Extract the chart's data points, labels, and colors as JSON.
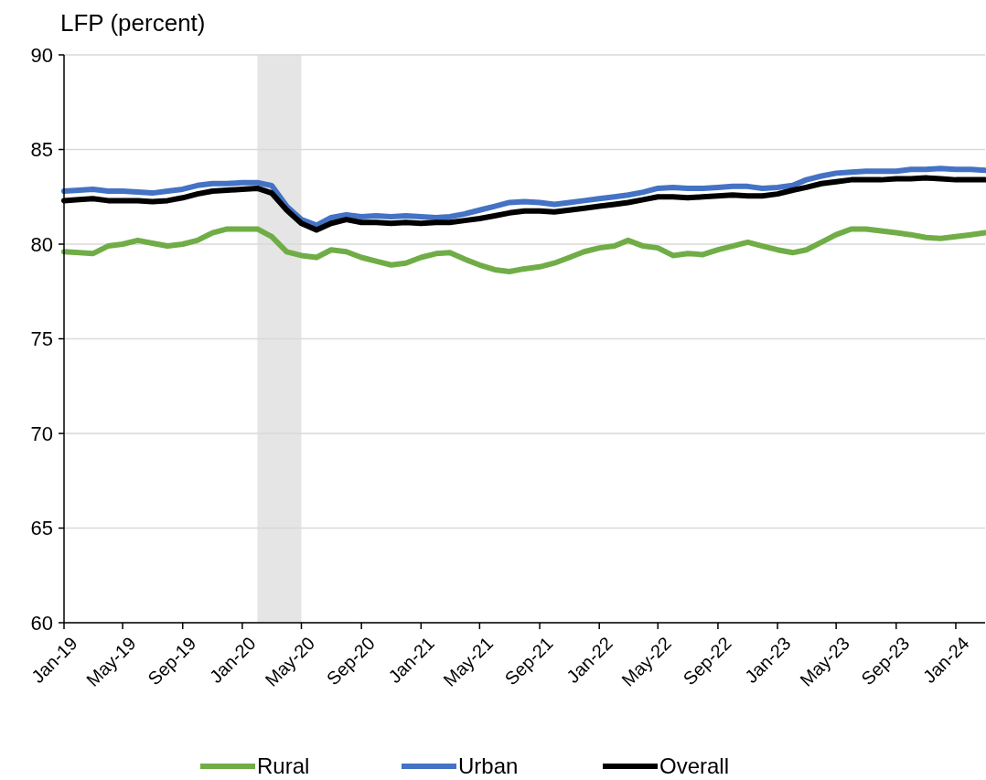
{
  "chart_data": {
    "type": "line",
    "ylabel": "LFP (percent)",
    "x": [
      "2019-01",
      "2019-02",
      "2019-03",
      "2019-04",
      "2019-05",
      "2019-06",
      "2019-07",
      "2019-08",
      "2019-09",
      "2019-10",
      "2019-11",
      "2019-12",
      "2020-01",
      "2020-02",
      "2020-03",
      "2020-04",
      "2020-05",
      "2020-06",
      "2020-07",
      "2020-08",
      "2020-09",
      "2020-10",
      "2020-11",
      "2020-12",
      "2021-01",
      "2021-02",
      "2021-03",
      "2021-04",
      "2021-05",
      "2021-06",
      "2021-07",
      "2021-08",
      "2021-09",
      "2021-10",
      "2021-11",
      "2021-12",
      "2022-01",
      "2022-02",
      "2022-03",
      "2022-04",
      "2022-05",
      "2022-06",
      "2022-07",
      "2022-08",
      "2022-09",
      "2022-10",
      "2022-11",
      "2022-12",
      "2023-01",
      "2023-02",
      "2023-03",
      "2023-04",
      "2023-05",
      "2023-06",
      "2023-07",
      "2023-08",
      "2023-09",
      "2023-10",
      "2023-11",
      "2023-12",
      "2024-01",
      "2024-02",
      "2024-03"
    ],
    "series": [
      {
        "name": "Rural",
        "color": "#70ad47",
        "values": [
          79.6,
          79.55,
          79.5,
          79.9,
          80.0,
          80.2,
          80.05,
          79.9,
          80.0,
          80.2,
          80.6,
          80.8,
          80.8,
          80.8,
          80.4,
          79.6,
          79.4,
          79.3,
          79.7,
          79.6,
          79.3,
          79.1,
          78.9,
          79.0,
          79.3,
          79.5,
          79.55,
          79.2,
          78.9,
          78.65,
          78.55,
          78.7,
          78.8,
          79.0,
          79.3,
          79.6,
          79.8,
          79.9,
          80.2,
          79.9,
          79.8,
          79.4,
          79.5,
          79.45,
          79.7,
          79.9,
          80.1,
          79.9,
          79.7,
          79.55,
          79.7,
          80.1,
          80.5,
          80.8,
          80.8,
          80.7,
          80.6,
          80.5,
          80.35,
          80.3,
          80.4,
          80.5,
          80.6
        ]
      },
      {
        "name": "Urban",
        "color": "#4472c4",
        "values": [
          82.8,
          82.85,
          82.9,
          82.8,
          82.8,
          82.75,
          82.7,
          82.8,
          82.9,
          83.1,
          83.2,
          83.2,
          83.25,
          83.25,
          83.1,
          82.0,
          81.3,
          81.0,
          81.4,
          81.55,
          81.45,
          81.5,
          81.45,
          81.5,
          81.45,
          81.4,
          81.45,
          81.6,
          81.8,
          82.0,
          82.2,
          82.25,
          82.2,
          82.1,
          82.2,
          82.3,
          82.4,
          82.5,
          82.6,
          82.75,
          82.95,
          83.0,
          82.95,
          82.95,
          83.0,
          83.05,
          83.05,
          82.95,
          83.0,
          83.1,
          83.4,
          83.6,
          83.75,
          83.8,
          83.85,
          83.85,
          83.85,
          83.95,
          83.95,
          84.0,
          83.95,
          83.95,
          83.9
        ]
      },
      {
        "name": "Overall",
        "color": "#000000",
        "values": [
          82.3,
          82.35,
          82.4,
          82.3,
          82.3,
          82.3,
          82.25,
          82.3,
          82.45,
          82.65,
          82.8,
          82.85,
          82.9,
          82.95,
          82.7,
          81.8,
          81.1,
          80.75,
          81.1,
          81.3,
          81.15,
          81.15,
          81.1,
          81.15,
          81.1,
          81.15,
          81.15,
          81.25,
          81.35,
          81.5,
          81.65,
          81.75,
          81.75,
          81.7,
          81.8,
          81.9,
          82.0,
          82.1,
          82.2,
          82.35,
          82.5,
          82.5,
          82.45,
          82.5,
          82.55,
          82.6,
          82.55,
          82.55,
          82.65,
          82.85,
          83.0,
          83.2,
          83.3,
          83.4,
          83.4,
          83.4,
          83.45,
          83.45,
          83.5,
          83.45,
          83.4,
          83.4,
          83.4
        ]
      }
    ],
    "xlim": [
      "2019-01",
      "2024-03"
    ],
    "xticks": [
      {
        "value": "2019-01",
        "label": "Jan-19"
      },
      {
        "value": "2019-05",
        "label": "May-19"
      },
      {
        "value": "2019-09",
        "label": "Sep-19"
      },
      {
        "value": "2020-01",
        "label": "Jan-20"
      },
      {
        "value": "2020-05",
        "label": "May-20"
      },
      {
        "value": "2020-09",
        "label": "Sep-20"
      },
      {
        "value": "2021-01",
        "label": "Jan-21"
      },
      {
        "value": "2021-05",
        "label": "May-21"
      },
      {
        "value": "2021-09",
        "label": "Sep-21"
      },
      {
        "value": "2022-01",
        "label": "Jan-22"
      },
      {
        "value": "2022-05",
        "label": "May-22"
      },
      {
        "value": "2022-09",
        "label": "Sep-22"
      },
      {
        "value": "2023-01",
        "label": "Jan-23"
      },
      {
        "value": "2023-05",
        "label": "May-23"
      },
      {
        "value": "2023-09",
        "label": "Sep-23"
      },
      {
        "value": "2024-01",
        "label": "Jan-24"
      }
    ],
    "ylim": [
      60,
      90
    ],
    "yticks": [
      60,
      65,
      70,
      75,
      80,
      85,
      90
    ],
    "bands": [
      {
        "axis": "x",
        "from": "2020-02",
        "to": "2020-05",
        "color": "#e5e5e5"
      }
    ],
    "grid": "y",
    "legend": "bottom",
    "marker": "none",
    "line_style": "solid"
  }
}
